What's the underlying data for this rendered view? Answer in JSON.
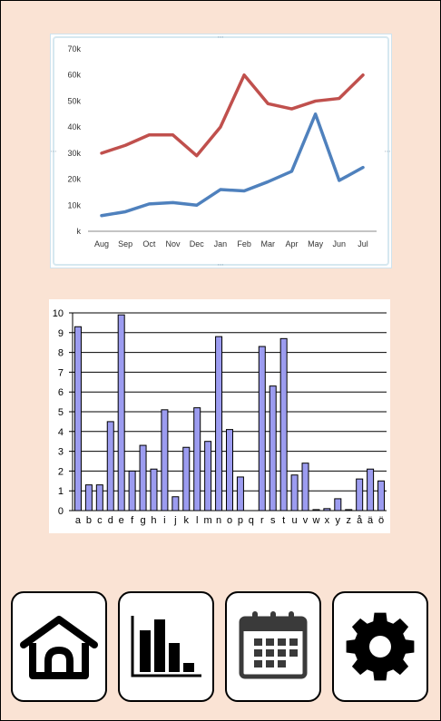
{
  "line_chart": {
    "chart_data": {
      "type": "line",
      "categories": [
        "Aug",
        "Sep",
        "Oct",
        "Nov",
        "Dec",
        "Jan",
        "Feb",
        "Mar",
        "Apr",
        "May",
        "Jun",
        "Jul"
      ],
      "y_tick_labels": [
        "k",
        "10k",
        "20k",
        "30k",
        "40k",
        "50k",
        "60k",
        "70k"
      ],
      "ylim": [
        0,
        70000
      ],
      "grid": false,
      "series": [
        {
          "color": "#c0504d",
          "values": [
            30000,
            33000,
            37000,
            37000,
            29000,
            40000,
            60000,
            49000,
            47000,
            50000,
            51000,
            60000
          ]
        },
        {
          "color": "#4f81bd",
          "values": [
            6000,
            7500,
            10500,
            11000,
            10000,
            16000,
            15500,
            19000,
            23000,
            45000,
            19500,
            24500
          ]
        }
      ]
    }
  },
  "bar_chart": {
    "chart_data": {
      "type": "bar",
      "categories": [
        "a",
        "b",
        "c",
        "d",
        "e",
        "f",
        "g",
        "h",
        "i",
        "j",
        "k",
        "l",
        "m",
        "n",
        "o",
        "p",
        "q",
        "r",
        "s",
        "t",
        "u",
        "v",
        "w",
        "x",
        "y",
        "z",
        "å",
        "ä",
        "ö"
      ],
      "values": [
        9.3,
        1.3,
        1.3,
        4.5,
        9.9,
        2.0,
        3.3,
        2.1,
        5.1,
        0.7,
        3.2,
        5.2,
        3.5,
        8.8,
        4.1,
        1.7,
        0,
        8.3,
        6.3,
        8.7,
        1.8,
        2.4,
        0.05,
        0.1,
        0.6,
        0.05,
        1.6,
        2.1,
        1.5
      ],
      "y_tick_labels": [
        "0",
        "1",
        "2",
        "3",
        "4",
        "5",
        "6",
        "7",
        "8",
        "9",
        "10"
      ],
      "ylim": [
        0,
        10
      ],
      "grid": true,
      "bar_color": "#9c9cf0"
    }
  },
  "nav": [
    {
      "icon": "home-icon"
    },
    {
      "icon": "bar-chart-icon"
    },
    {
      "icon": "calendar-icon"
    },
    {
      "icon": "settings-gear-icon"
    }
  ]
}
